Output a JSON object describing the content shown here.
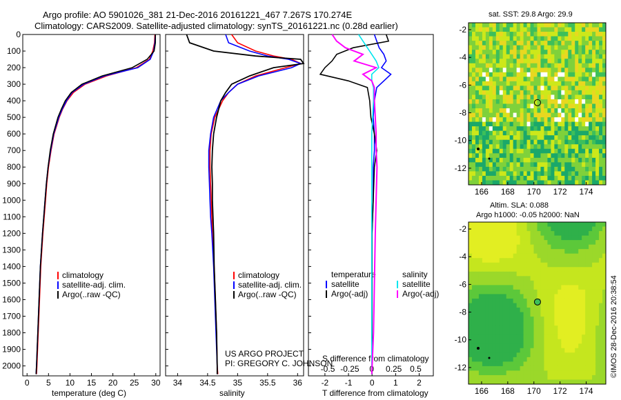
{
  "header": {
    "line1": "Argo profile: AO 5901026_381 21-Dec-2016 20161221_467 7.267S 170.274E",
    "line2": "Climatology: CARS2009. Satellite-adjusted climatology: synTS_20161221.nc (0.28d earlier)"
  },
  "credits": {
    "project": "US ARGO PROJECT",
    "pi": "PI: GREGORY C. JOHNSON",
    "imos": "©IMOS 28-Dec-2016 20:38:54"
  },
  "colors": {
    "climatology": "#ff0000",
    "satellite": "#0000ff",
    "argo": "#000000",
    "sal_satellite": "#00e5ee",
    "sal_argo": "#ff00ff"
  },
  "chart_data": [
    {
      "type": "line",
      "id": "temperature",
      "xlabel": "temperature (deg C)",
      "ylabel": "",
      "xlim": [
        -1,
        31
      ],
      "ylim": [
        2060,
        0
      ],
      "xticks": [
        "0",
        "5",
        "10",
        "15",
        "20",
        "25",
        "30"
      ],
      "yticks": [
        "0",
        "100",
        "200",
        "300",
        "400",
        "500",
        "600",
        "700",
        "800",
        "900",
        "1000",
        "1100",
        "1200",
        "1300",
        "1400",
        "1500",
        "1600",
        "1700",
        "1800",
        "1900",
        "2000"
      ],
      "legend": [
        "climatology",
        "satellite-adj. clim.",
        "Argo(..raw -QC)"
      ],
      "depth": [
        0,
        50,
        100,
        150,
        200,
        250,
        300,
        350,
        400,
        450,
        500,
        600,
        700,
        800,
        900,
        1000,
        1200,
        1400,
        1600,
        1800,
        2000,
        2050
      ],
      "series": [
        {
          "name": "climatology",
          "values": [
            29.8,
            29.7,
            29.3,
            28.5,
            25.5,
            18.5,
            13.5,
            10.8,
            9.3,
            8.3,
            7.5,
            6.3,
            5.6,
            5.0,
            4.6,
            4.3,
            3.7,
            3.2,
            2.9,
            2.6,
            2.3,
            2.2
          ]
        },
        {
          "name": "satellite-adj. clim.",
          "values": [
            29.9,
            29.8,
            29.5,
            28.7,
            25.8,
            18.0,
            13.2,
            10.5,
            9.2,
            8.2,
            7.4,
            6.2,
            5.5,
            4.9,
            4.5,
            4.2,
            3.6,
            3.1,
            2.8,
            2.5,
            2.2,
            2.1
          ]
        },
        {
          "name": "Argo(..raw -QC)",
          "values": [
            29.9,
            29.9,
            29.6,
            28.0,
            24.5,
            17.5,
            12.8,
            10.3,
            8.9,
            8.0,
            7.2,
            6.1,
            5.4,
            4.9,
            4.5,
            4.2,
            3.6,
            3.1,
            2.8,
            2.5,
            2.2,
            2.1
          ]
        }
      ]
    },
    {
      "type": "line",
      "id": "salinity",
      "xlabel": "salinity",
      "xlim": [
        33.8,
        36.1
      ],
      "ylim": [
        2060,
        0
      ],
      "xticks": [
        "34",
        "34.5",
        "35",
        "35.5",
        "36"
      ],
      "legend": [
        "climatology",
        "satellite-adj. clim.",
        "Argo(..raw -QC)"
      ],
      "depth": [
        0,
        50,
        100,
        130,
        150,
        175,
        200,
        250,
        300,
        350,
        400,
        500,
        600,
        700,
        800,
        900,
        1000,
        1100,
        1200,
        1400,
        1600,
        1800,
        2000,
        2050
      ],
      "series": [
        {
          "name": "climatology",
          "values": [
            34.9,
            35.0,
            35.3,
            35.6,
            35.9,
            36.05,
            35.8,
            35.3,
            35.0,
            34.85,
            34.75,
            34.62,
            34.56,
            34.54,
            34.54,
            34.55,
            34.56,
            34.57,
            34.58,
            34.61,
            34.63,
            34.65,
            34.66,
            34.67
          ]
        },
        {
          "name": "satellite-adj. clim.",
          "values": [
            34.8,
            34.85,
            35.2,
            35.5,
            35.85,
            36.05,
            35.9,
            35.35,
            35.0,
            34.85,
            34.72,
            34.6,
            34.55,
            34.52,
            34.52,
            34.53,
            34.54,
            34.55,
            34.57,
            34.6,
            34.62,
            34.64,
            34.66,
            34.66
          ]
        },
        {
          "name": "Argo(..raw -QC)",
          "values": [
            34.15,
            34.2,
            34.6,
            35.3,
            36.05,
            36.1,
            35.6,
            35.2,
            34.9,
            34.8,
            34.72,
            34.65,
            34.6,
            34.58,
            34.57,
            34.58,
            34.58,
            34.59,
            34.6,
            34.61,
            34.63,
            34.65,
            34.66,
            34.66
          ]
        }
      ]
    },
    {
      "type": "line",
      "id": "difference",
      "xlabel": "T difference from climatology",
      "xlabel_top": "S difference from climatology",
      "xlim": [
        -2.7,
        2.6
      ],
      "ylim": [
        2060,
        0
      ],
      "xticks": [
        "-2",
        "-1",
        "0",
        "1",
        "2"
      ],
      "xticks_top": [
        "-0.5",
        "-0.25",
        "0",
        "0.25",
        "0.5"
      ],
      "legend_temperature_title": "temperature",
      "legend_salinity_title": "salinity",
      "legend": [
        "satellite",
        "Argo(-adj)",
        "satellite",
        "Argo(-adj)"
      ],
      "depth": [
        0,
        40,
        80,
        120,
        160,
        200,
        240,
        280,
        320,
        400,
        500,
        600,
        700,
        800,
        1000,
        1200,
        1500,
        1800,
        2050
      ],
      "series": [
        {
          "name": "T satellite",
          "values": [
            0.1,
            0.2,
            0.3,
            0.5,
            0.6,
            0.4,
            0.8,
            0.5,
            0.2,
            0.1,
            0.05,
            0.1,
            0.1,
            0.05,
            0.05,
            0.0,
            0.0,
            0.0,
            0.0
          ]
        },
        {
          "name": "T Argo(-adj)",
          "values": [
            0.6,
            0.7,
            -0.8,
            -1.5,
            -1.7,
            -2.0,
            -2.2,
            -1.0,
            -0.2,
            -0.1,
            -0.05,
            0.1,
            0.2,
            0.1,
            0.05,
            0.0,
            0.0,
            0.0,
            0.0
          ]
        },
        {
          "name": "S satellite",
          "values": [
            -0.15,
            -0.1,
            -0.05,
            0.0,
            0.05,
            0.08,
            0.0,
            0.0,
            0.02,
            0.02,
            0.01,
            0.0,
            0.0,
            0.0,
            0.0,
            0.0,
            0.0,
            0.0,
            0.0
          ]
        },
        {
          "name": "S Argo(-adj)",
          "values": [
            -0.45,
            -0.4,
            -0.3,
            -0.1,
            -0.2,
            0.05,
            -0.1,
            0.0,
            0.03,
            0.03,
            0.04,
            0.05,
            0.05,
            0.06,
            0.05,
            0.04,
            0.03,
            0.02,
            0.0
          ]
        }
      ]
    },
    {
      "type": "heatmap",
      "id": "sst_map",
      "title": "sat. SST: 29.8 Argo: 29.9",
      "xticks": [
        "166",
        "168",
        "170",
        "172",
        "174"
      ],
      "yticks": [
        "-2",
        "-4",
        "-6",
        "-8",
        "-10",
        "-12"
      ],
      "xlim": [
        165,
        175.5
      ],
      "ylim": [
        -13.2,
        -1.5
      ],
      "argo_position": {
        "lon": 170.274,
        "lat": -7.267
      }
    },
    {
      "type": "heatmap",
      "id": "sla_map",
      "title_line1": "Altim. SLA: 0.088",
      "title_line2": "Argo h1000: -0.05 h2000: NaN",
      "xticks": [
        "166",
        "168",
        "170",
        "172",
        "174"
      ],
      "yticks": [
        "-2",
        "-4",
        "-6",
        "-8",
        "-10",
        "-12"
      ],
      "xlim": [
        165,
        175.5
      ],
      "ylim": [
        -13.2,
        -1.5
      ],
      "argo_position": {
        "lon": 170.274,
        "lat": -7.267
      }
    }
  ]
}
